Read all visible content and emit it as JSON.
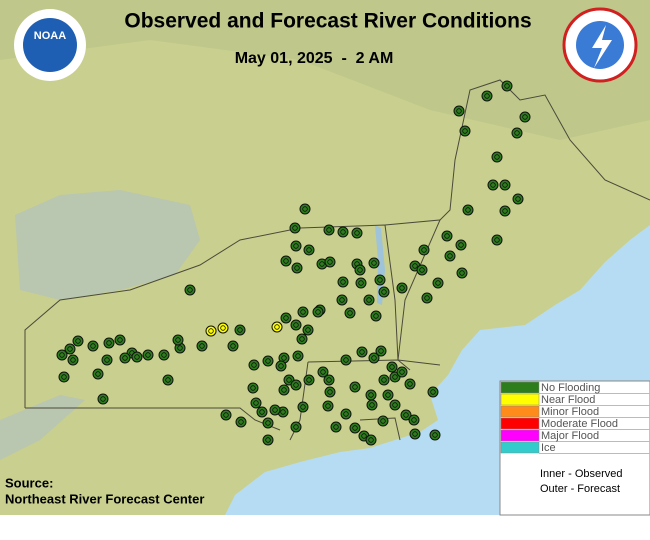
{
  "header": {
    "title": "Observed and Forecast River Conditions",
    "date": "May 01, 2025  -  2 AM"
  },
  "logos": {
    "noaa": "NOAA"
  },
  "source": {
    "label": "Source:",
    "name": "Northeast River Forecast Center"
  },
  "legend": {
    "items": [
      {
        "label": "No Flooding",
        "color": "#2e7d1c"
      },
      {
        "label": "Near Flood",
        "color": "#ffff00"
      },
      {
        "label": "Minor Flood",
        "color": "#ff8c1a"
      },
      {
        "label": "Moderate Flood",
        "color": "#ff0000"
      },
      {
        "label": "Major Flood",
        "color": "#ff00ff"
      },
      {
        "label": "Ice",
        "color": "#33cccc"
      }
    ],
    "notes": [
      "Inner - Observed",
      "Outer - Forecast"
    ]
  }
}
